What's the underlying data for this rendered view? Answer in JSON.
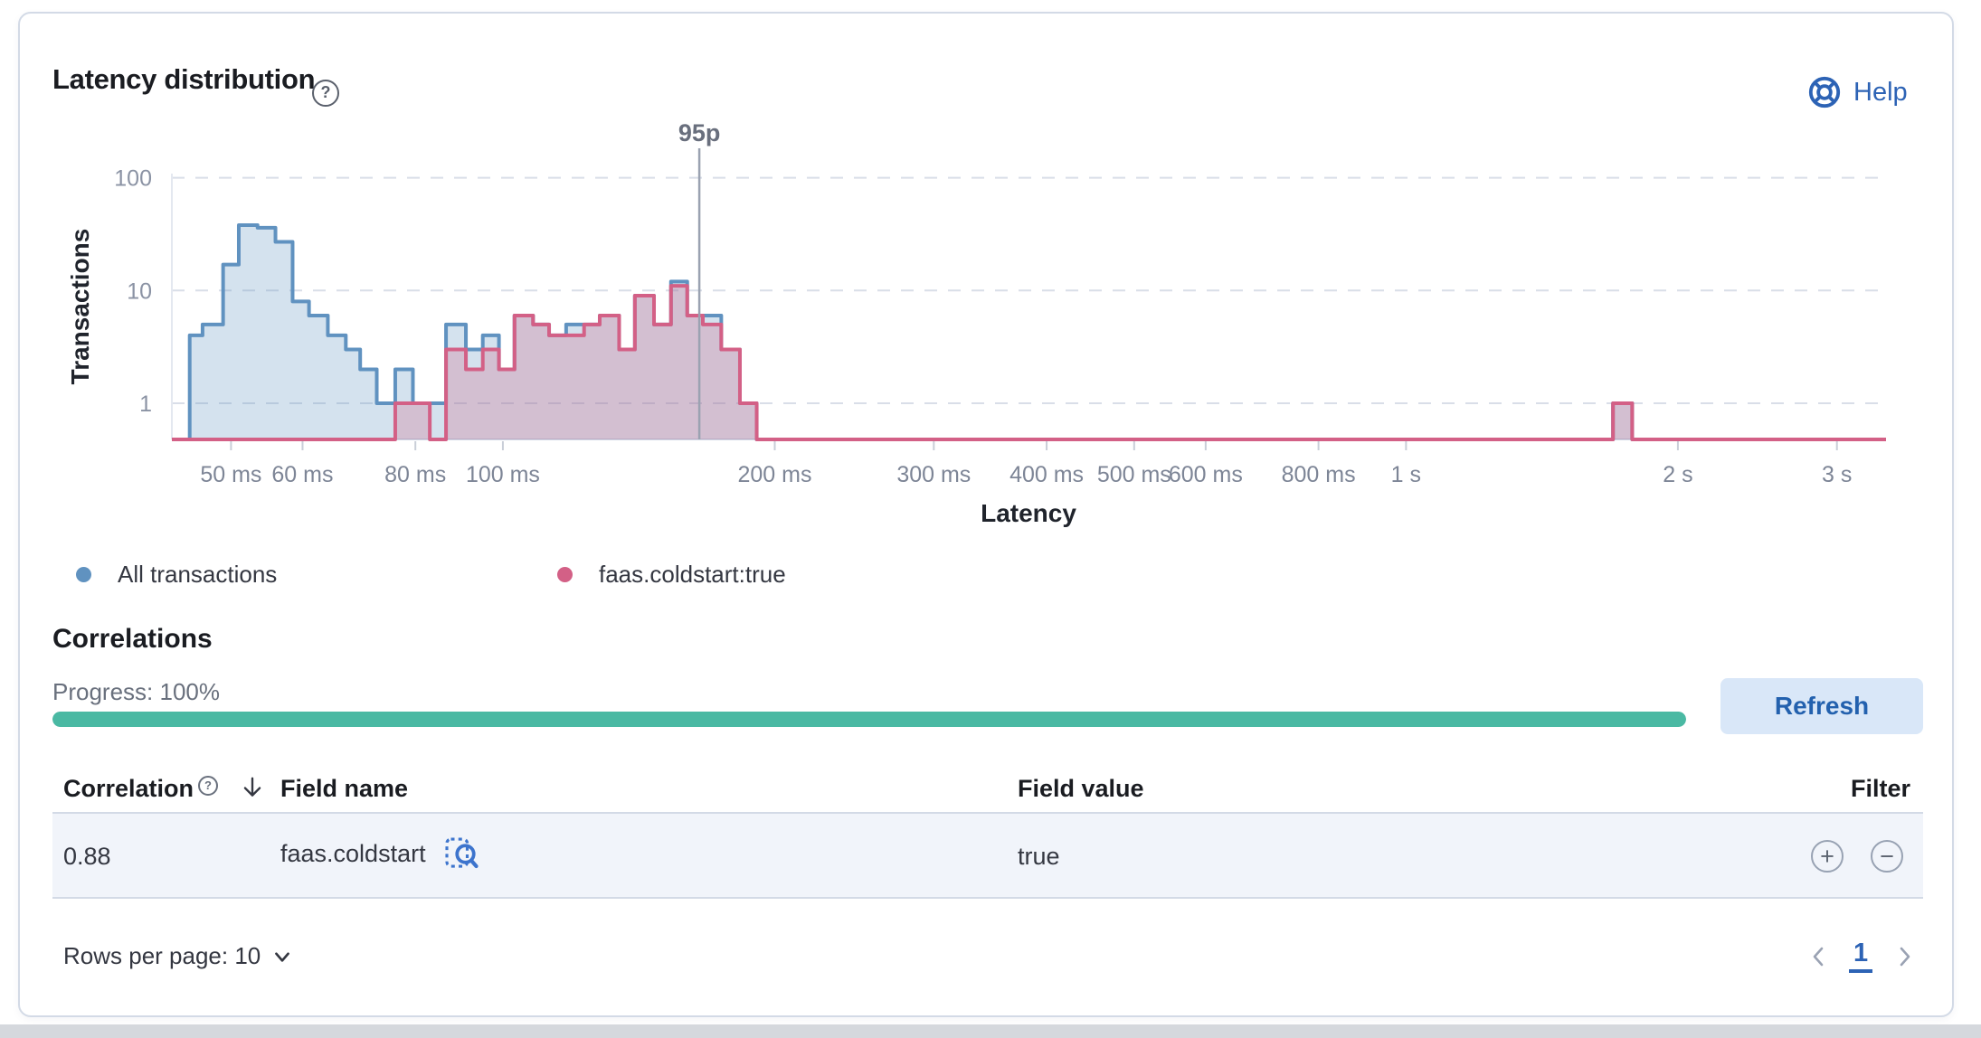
{
  "header": {
    "title": "Latency distribution",
    "help_label": "Help"
  },
  "icons": {
    "question_glyph": "?",
    "plus_glyph": "+",
    "minus_glyph": "−"
  },
  "chart_data": {
    "type": "histogram",
    "title": "Latency distribution",
    "x_axis": {
      "label": "Latency",
      "scale": "log",
      "unit": "ms",
      "domain_ms": [
        43,
        3400
      ],
      "ticks": [
        {
          "label": "50 ms",
          "ms": 50
        },
        {
          "label": "60 ms",
          "ms": 60
        },
        {
          "label": "80 ms",
          "ms": 80
        },
        {
          "label": "100 ms",
          "ms": 100
        },
        {
          "label": "200 ms",
          "ms": 200
        },
        {
          "label": "300 ms",
          "ms": 300
        },
        {
          "label": "400 ms",
          "ms": 400
        },
        {
          "label": "500 ms",
          "ms": 500
        },
        {
          "label": "600 ms",
          "ms": 600
        },
        {
          "label": "800 ms",
          "ms": 800
        },
        {
          "label": "1 s",
          "ms": 1000
        },
        {
          "label": "2 s",
          "ms": 2000
        },
        {
          "label": "3 s",
          "ms": 3000
        }
      ]
    },
    "y_axis": {
      "label": "Transactions",
      "scale": "log",
      "ticks": [
        {
          "label": "100",
          "value": 100
        },
        {
          "label": "10",
          "value": 10
        },
        {
          "label": "1",
          "value": 1
        }
      ]
    },
    "annotation": {
      "label": "95p",
      "ms": 165
    },
    "legend_position": "bottom",
    "grid": "dashed-horizontal",
    "series": [
      {
        "name": "All transactions",
        "color": "#6092C0",
        "buckets": [
          [
            45,
            46.5,
            4
          ],
          [
            46.5,
            49,
            5
          ],
          [
            49,
            51,
            17
          ],
          [
            51,
            53.5,
            38
          ],
          [
            53.5,
            56,
            36
          ],
          [
            56,
            58.5,
            27
          ],
          [
            58.5,
            61,
            8
          ],
          [
            61,
            64,
            6
          ],
          [
            64,
            67,
            4
          ],
          [
            67,
            69.5,
            3
          ],
          [
            69.5,
            72.5,
            2
          ],
          [
            72.5,
            76,
            1
          ],
          [
            76,
            79.5,
            2
          ],
          [
            79.5,
            83,
            1
          ],
          [
            83,
            86.5,
            1
          ],
          [
            86.5,
            91,
            5
          ],
          [
            91,
            95,
            3
          ],
          [
            95,
            99,
            4
          ],
          [
            99,
            103,
            2
          ],
          [
            103,
            108,
            6
          ],
          [
            108,
            112.5,
            5
          ],
          [
            112.5,
            117.5,
            4
          ],
          [
            117.5,
            123,
            5
          ],
          [
            123,
            128,
            5
          ],
          [
            128,
            134.5,
            6
          ],
          [
            134.5,
            140,
            3
          ],
          [
            140,
            147,
            9
          ],
          [
            147,
            153.5,
            5
          ],
          [
            153.5,
            160,
            12
          ],
          [
            160,
            166.5,
            6
          ],
          [
            166.5,
            174.5,
            6
          ],
          [
            174.5,
            183,
            3
          ],
          [
            183,
            191,
            1
          ],
          [
            1695,
            1780,
            1
          ]
        ]
      },
      {
        "name": "faas.coldstart:true",
        "color": "#D36086",
        "buckets": [
          [
            76,
            79.5,
            1
          ],
          [
            79.5,
            83,
            1
          ],
          [
            86.5,
            91,
            3
          ],
          [
            91,
            95,
            2
          ],
          [
            95,
            99,
            3
          ],
          [
            99,
            103,
            2
          ],
          [
            103,
            108,
            6
          ],
          [
            108,
            112.5,
            5
          ],
          [
            112.5,
            117.5,
            4
          ],
          [
            117.5,
            123,
            4
          ],
          [
            123,
            128,
            5
          ],
          [
            128,
            134.5,
            6
          ],
          [
            134.5,
            140,
            3
          ],
          [
            140,
            147,
            9
          ],
          [
            147,
            153.5,
            5
          ],
          [
            153.5,
            160,
            11
          ],
          [
            160,
            166.5,
            6
          ],
          [
            166.5,
            174.5,
            5
          ],
          [
            174.5,
            183,
            3
          ],
          [
            183,
            191,
            1
          ],
          [
            1695,
            1780,
            1
          ]
        ]
      }
    ]
  },
  "correlations": {
    "heading": "Correlations",
    "progress_label": "Progress: 100%",
    "progress_value": 100,
    "progress_color": "#4ab9a3",
    "refresh_label": "Refresh"
  },
  "table": {
    "columns": [
      "Correlation",
      "Field name",
      "Field value",
      "Filter"
    ],
    "sort": {
      "column": "Correlation",
      "direction": "desc"
    },
    "rows": [
      {
        "correlation": "0.88",
        "field_name": "faas.coldstart",
        "field_value": "true"
      }
    ]
  },
  "footer": {
    "rows_per_page_label": "Rows per page: 10",
    "page": "1"
  },
  "colors": {
    "accent_blue": "#2d63b5",
    "series_blue": "#6092C0",
    "series_pink": "#D36086",
    "progress_teal": "#4ab9a3",
    "row_background": "#f1f4fa",
    "border": "#d3dae6"
  }
}
